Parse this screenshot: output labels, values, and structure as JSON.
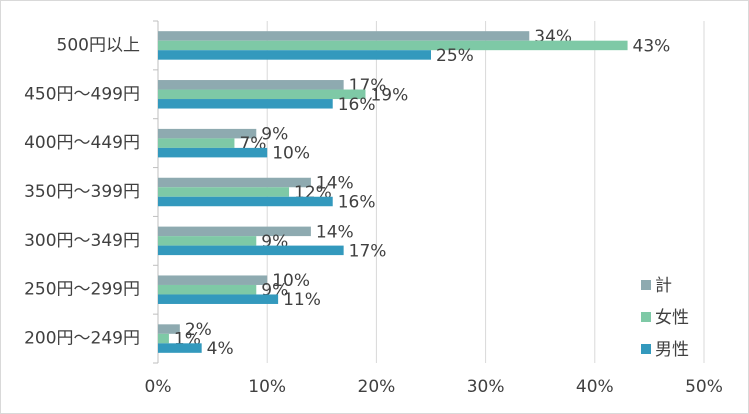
{
  "chart_data": {
    "type": "bar",
    "orientation": "horizontal",
    "categories": [
      "500円以上",
      "450円～499円",
      "400円～449円",
      "350円～399円",
      "300円～349円",
      "250円～299円",
      "200円～249円"
    ],
    "series": [
      {
        "name": "計",
        "color": "#8eaab0",
        "values": [
          34,
          17,
          9,
          14,
          14,
          10,
          2
        ],
        "labels": [
          "34%",
          "17%",
          "9%",
          "14%",
          "14%",
          "10%",
          "2%"
        ]
      },
      {
        "name": "女性",
        "color": "#7ec9a6",
        "values": [
          43,
          19,
          7,
          12,
          9,
          9,
          1
        ],
        "labels": [
          "43%",
          "19%",
          "7%",
          "12%",
          "9%",
          "9%",
          "1%"
        ]
      },
      {
        "name": "男性",
        "color": "#3399bd",
        "values": [
          25,
          16,
          10,
          16,
          17,
          11,
          4
        ],
        "labels": [
          "25%",
          "16%",
          "10%",
          "16%",
          "17%",
          "11%",
          "4%"
        ]
      }
    ],
    "xlim": [
      0,
      50
    ],
    "x_ticks": [
      "0%",
      "10%",
      "20%",
      "30%",
      "40%",
      "50%"
    ],
    "grid": true,
    "legend_position": "right"
  }
}
